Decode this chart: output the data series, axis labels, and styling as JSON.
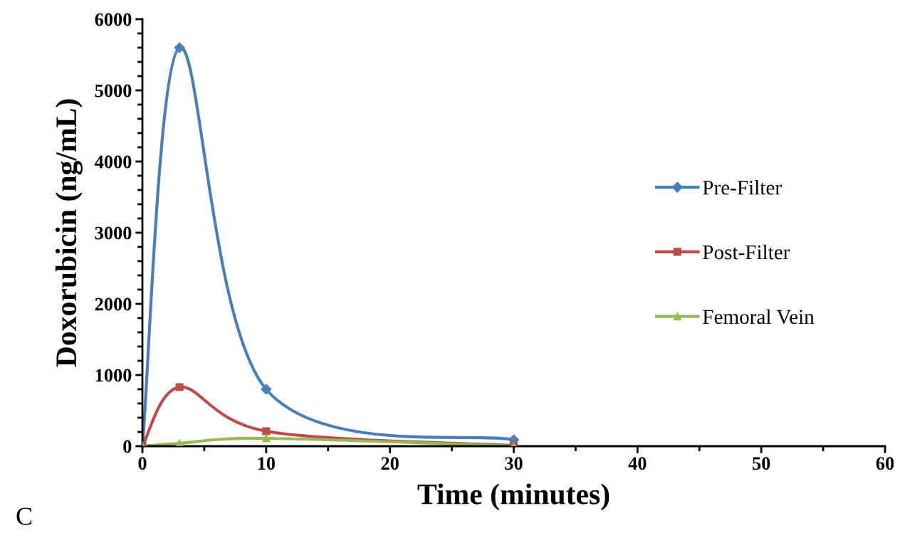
{
  "chart_data": {
    "type": "line",
    "xlabel": "Time (minutes)",
    "ylabel": "Doxorubicin (ng/mL)",
    "x": [
      0,
      3,
      10,
      30
    ],
    "series": [
      {
        "name": "Pre-Filter",
        "color": "#4a7ebb",
        "marker": "diamond",
        "values": [
          0,
          5600,
          800,
          90
        ]
      },
      {
        "name": "Post-Filter",
        "color": "#be4b48",
        "marker": "square",
        "values": [
          0,
          830,
          210,
          10
        ]
      },
      {
        "name": "Femoral Vein",
        "color": "#98b954",
        "marker": "triangle",
        "values": [
          0,
          40,
          110,
          0
        ]
      }
    ],
    "xlim": [
      0,
      60
    ],
    "xticks": [
      0,
      10,
      20,
      30,
      40,
      50,
      60
    ],
    "ylim": [
      0,
      6000
    ],
    "yticks": [
      0,
      1000,
      2000,
      3000,
      4000,
      5000,
      6000
    ],
    "grid": false,
    "legend": "right",
    "line_style": "solid",
    "annotations": [
      "C"
    ]
  }
}
